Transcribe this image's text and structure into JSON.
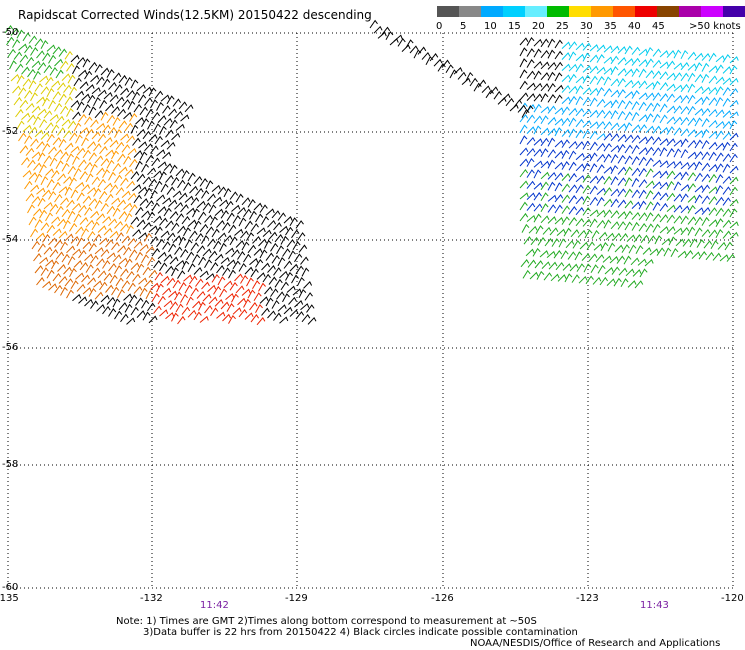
{
  "title": "Rapidscat Corrected Winds(12.5KM) 20150422 descending",
  "legend": {
    "colors": [
      "#555555",
      "#888888",
      "#00aaff",
      "#00d0ff",
      "#66eeff",
      "#00bb00",
      "#ffdd00",
      "#ff9900",
      "#ff5500",
      "#ee0000",
      "#884400",
      "#aa00aa",
      "#cc00ff",
      "#4400aa"
    ],
    "labels": [
      "0",
      "5",
      "10",
      "15",
      "20",
      "25",
      "30",
      "35",
      "40",
      "45",
      ">50 knots"
    ]
  },
  "axes": {
    "lon_ticks": [
      "-135",
      "-132",
      "-129",
      "-126",
      "-123",
      "-120"
    ],
    "lat_ticks": [
      "-50",
      "-52",
      "-54",
      "-56",
      "-58",
      "-60"
    ]
  },
  "times": [
    "11:42",
    "11:43"
  ],
  "notes": [
    "Note: 1) Times are GMT 2)Times along bottom correspond to measurement at ~50S",
    "3)Data buffer is 22 hrs from 20150422 4) Black circles indicate possible contamination",
    "NOAA/NESDIS/Office of Research and Applications"
  ]
}
